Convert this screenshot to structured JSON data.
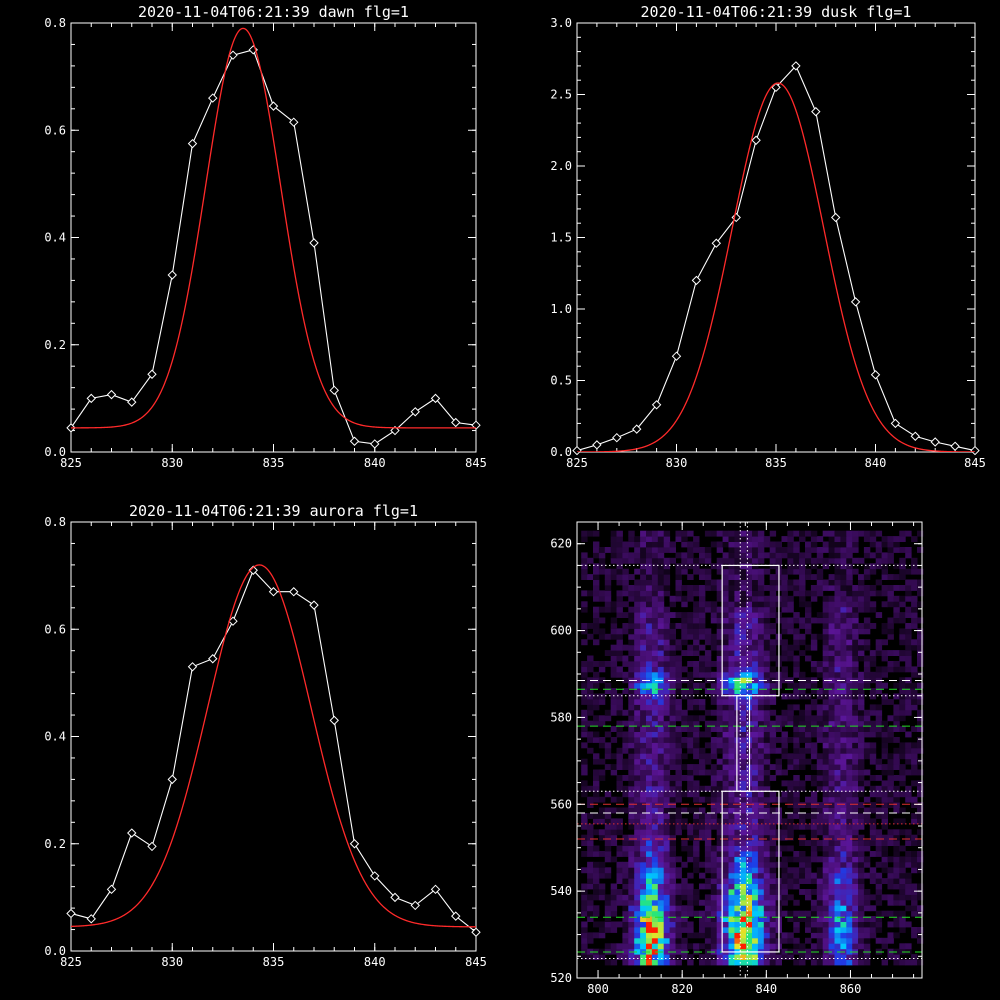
{
  "colors": {
    "background": "#000000",
    "foreground": "#ffffff",
    "fit_line": "#ff2a2a",
    "band_dashed_white": "#ffffff",
    "band_dashed_green": "#22dd22",
    "band_dashed_red": "#e03030",
    "heatmap_low": "#3a0a5a",
    "heatmap_mid": "#00c8ff",
    "heatmap_high": "#ff2000"
  },
  "chart_data": [
    {
      "type": "line",
      "title": "2020-11-04T06:21:39 dawn flg=1",
      "xlabel": "",
      "ylabel": "",
      "xlim": [
        825,
        845
      ],
      "ylim": [
        0,
        0.8
      ],
      "xticks": [
        "825",
        "830",
        "835",
        "840",
        "845"
      ],
      "yticks": [
        "0.0",
        "0.2",
        "0.4",
        "0.6",
        "0.8"
      ],
      "grid": false,
      "series": [
        {
          "kind": "observed",
          "marker": "diamond",
          "color": "#ffffff",
          "x": [
            825,
            826,
            827,
            828,
            829,
            830,
            831,
            832,
            833,
            834,
            835,
            836,
            837,
            838,
            839,
            840,
            841,
            842,
            843,
            844,
            845
          ],
          "y": [
            0.045,
            0.1,
            0.107,
            0.093,
            0.145,
            0.33,
            0.575,
            0.66,
            0.74,
            0.75,
            0.645,
            0.615,
            0.39,
            0.115,
            0.02,
            0.015,
            0.04,
            0.075,
            0.1,
            0.055,
            0.05
          ]
        },
        {
          "kind": "fit",
          "color": "#ff2a2a",
          "gaussian": {
            "amplitude": 0.745,
            "center": 833.5,
            "sigma": 1.85,
            "baseline": 0.045
          }
        }
      ]
    },
    {
      "type": "line",
      "title": "2020-11-04T06:21:39 dusk flg=1",
      "xlabel": "",
      "ylabel": "",
      "xlim": [
        825,
        845
      ],
      "ylim": [
        0,
        3.0
      ],
      "xticks": [
        "825",
        "830",
        "835",
        "840",
        "845"
      ],
      "yticks": [
        "0.0",
        "0.5",
        "1.0",
        "1.5",
        "2.0",
        "2.5",
        "3.0"
      ],
      "grid": false,
      "series": [
        {
          "kind": "observed",
          "marker": "diamond",
          "color": "#ffffff",
          "x": [
            825,
            826,
            827,
            828,
            829,
            830,
            831,
            832,
            833,
            834,
            835,
            836,
            837,
            838,
            839,
            840,
            841,
            842,
            843,
            844,
            845
          ],
          "y": [
            0.01,
            0.05,
            0.1,
            0.16,
            0.33,
            0.67,
            1.2,
            1.46,
            1.64,
            2.18,
            2.55,
            2.7,
            2.38,
            1.64,
            1.05,
            0.54,
            0.2,
            0.11,
            0.07,
            0.04,
            0.01
          ]
        },
        {
          "kind": "fit",
          "color": "#ff2a2a",
          "gaussian": {
            "amplitude": 2.58,
            "center": 835.1,
            "sigma": 2.3,
            "baseline": 0.0
          }
        }
      ]
    },
    {
      "type": "line",
      "title": "2020-11-04T06:21:39 aurora flg=1",
      "xlabel": "",
      "ylabel": "",
      "xlim": [
        825,
        845
      ],
      "ylim": [
        0,
        0.8
      ],
      "xticks": [
        "825",
        "830",
        "835",
        "840",
        "845"
      ],
      "yticks": [
        "0.0",
        "0.2",
        "0.4",
        "0.6",
        "0.8"
      ],
      "grid": false,
      "series": [
        {
          "kind": "observed",
          "marker": "diamond",
          "color": "#ffffff",
          "x": [
            825,
            826,
            827,
            828,
            829,
            830,
            831,
            832,
            833,
            834,
            835,
            836,
            837,
            838,
            839,
            840,
            841,
            842,
            843,
            844,
            845
          ],
          "y": [
            0.07,
            0.06,
            0.115,
            0.22,
            0.195,
            0.32,
            0.53,
            0.545,
            0.615,
            0.71,
            0.67,
            0.67,
            0.645,
            0.43,
            0.2,
            0.14,
            0.1,
            0.085,
            0.115,
            0.065,
            0.035
          ]
        },
        {
          "kind": "fit",
          "color": "#ff2a2a",
          "gaussian": {
            "amplitude": 0.675,
            "center": 834.3,
            "sigma": 2.55,
            "baseline": 0.045
          }
        }
      ]
    },
    {
      "type": "heatmap",
      "title": "",
      "xlabel": "",
      "ylabel": "",
      "xlim": [
        795,
        877
      ],
      "ylim": [
        520,
        625
      ],
      "xticks": [
        "800",
        "820",
        "840",
        "860"
      ],
      "yticks": [
        "520",
        "540",
        "560",
        "580",
        "600",
        "620"
      ],
      "grid": false,
      "emission_columns": [
        {
          "center_x": 812,
          "width": 4,
          "bright_bottom": true
        },
        {
          "center_x": 834,
          "width": 5,
          "bright_bottom": true
        },
        {
          "center_x": 857,
          "width": 4,
          "bright_bottom": false
        }
      ],
      "boxes": [
        {
          "x": [
            829.5,
            843
          ],
          "y": [
            585,
            615
          ]
        },
        {
          "x": [
            829.5,
            843
          ],
          "y": [
            526,
            563
          ]
        }
      ],
      "narrow_box": {
        "x": [
          833,
          836
        ],
        "y": [
          563,
          585
        ]
      },
      "vertical_dotted_x": [
        833.8,
        835.5
      ],
      "horizontal_lines": [
        {
          "y": 615,
          "style": "dotted",
          "color": "#ffffff"
        },
        {
          "y": 588.5,
          "style": "dashed",
          "color": "#ffffff"
        },
        {
          "y": 586.5,
          "style": "dashed",
          "color": "#22dd22"
        },
        {
          "y": 585,
          "style": "dotted",
          "color": "#ffffff"
        },
        {
          "y": 578,
          "style": "dashed",
          "color": "#22dd22"
        },
        {
          "y": 563,
          "style": "dotted",
          "color": "#ffffff"
        },
        {
          "y": 560,
          "style": "dashed",
          "color": "#e03030"
        },
        {
          "y": 558,
          "style": "dashed",
          "color": "#ffffff"
        },
        {
          "y": 555.5,
          "style": "dotted",
          "color": "#e03030"
        },
        {
          "y": 552,
          "style": "dashed",
          "color": "#e03030"
        },
        {
          "y": 534,
          "style": "dashed",
          "color": "#22dd22"
        },
        {
          "y": 526,
          "style": "dashed",
          "color": "#22dd22"
        },
        {
          "y": 524.5,
          "style": "dotted",
          "color": "#ffffff"
        }
      ]
    }
  ]
}
